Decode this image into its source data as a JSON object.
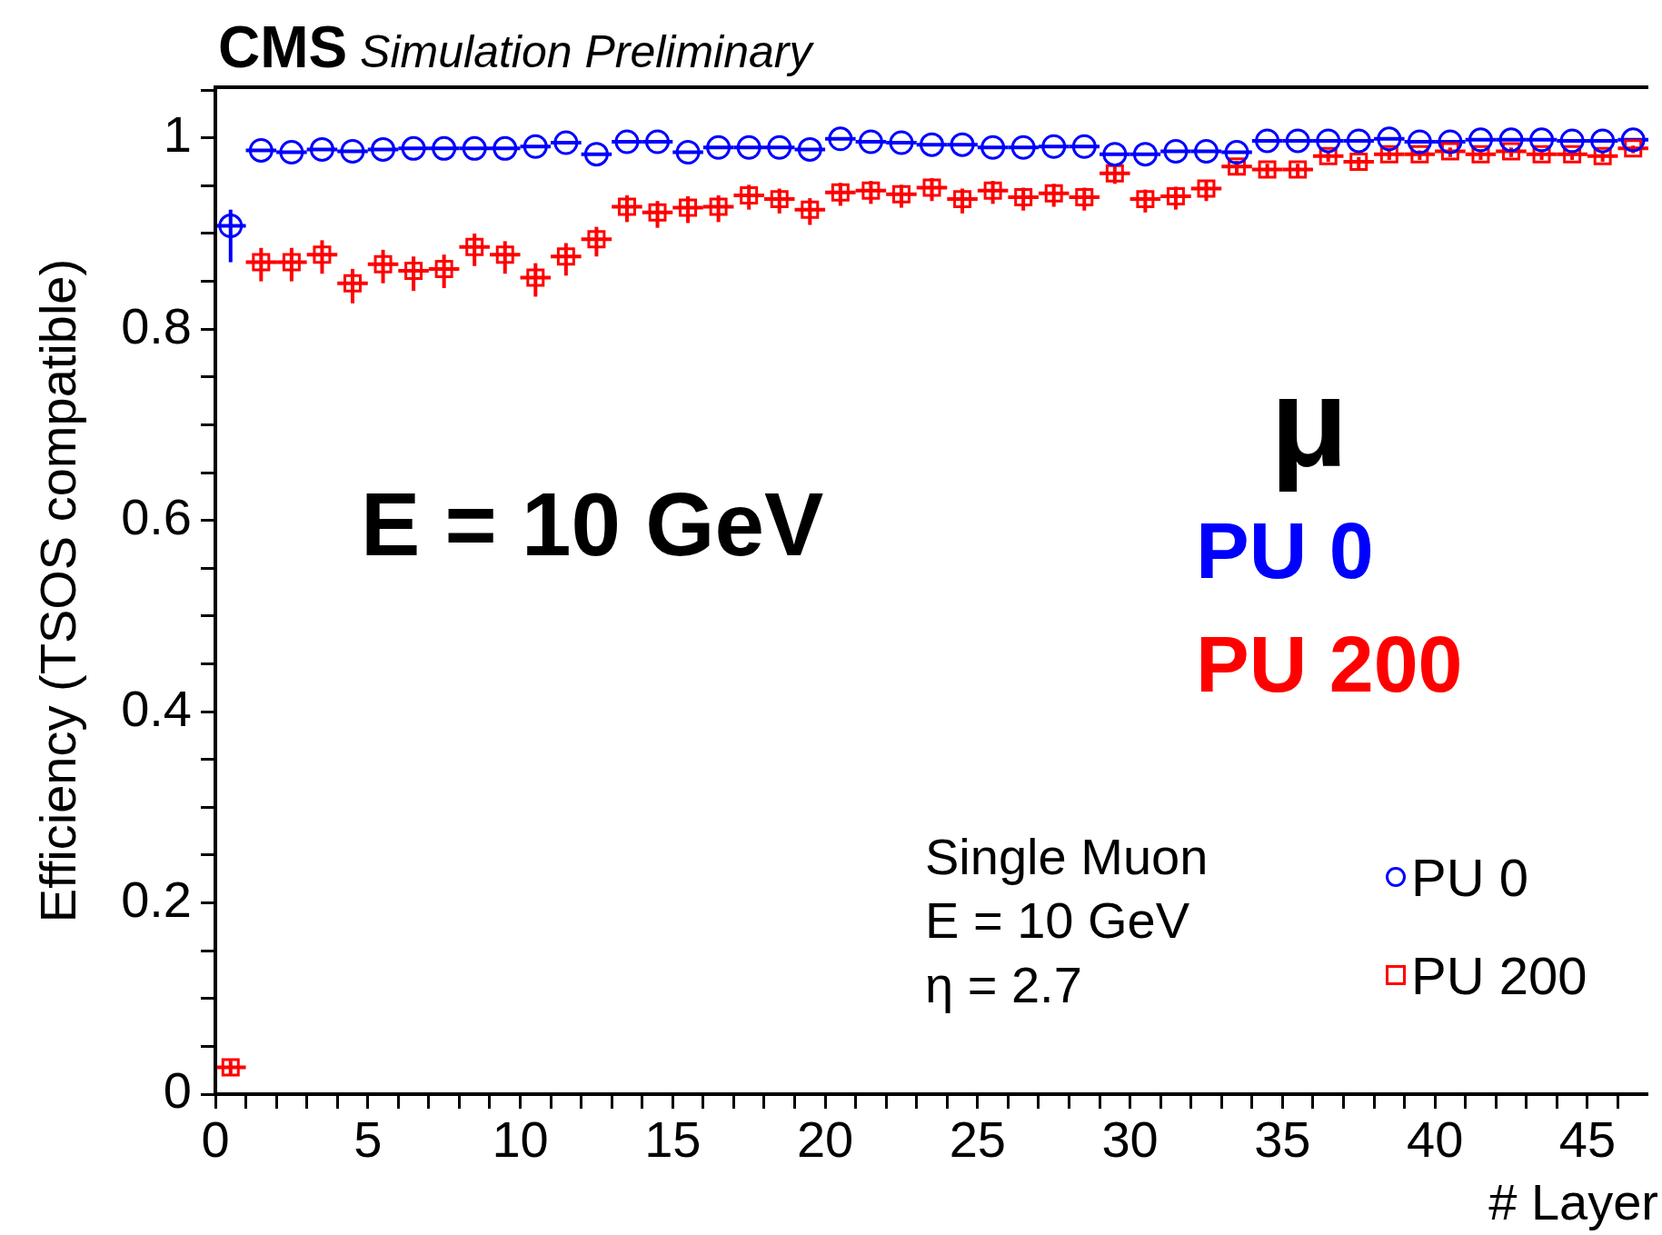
{
  "chart_data": {
    "type": "scatter",
    "title": "CMS",
    "subtitle": "Simulation Preliminary",
    "xlabel": "# Layer",
    "ylabel": "Efficiency (TSOS compatible)",
    "x": [
      0.5,
      1.5,
      2.5,
      3.5,
      4.5,
      5.5,
      6.5,
      7.5,
      8.5,
      9.5,
      10.5,
      11.5,
      12.5,
      13.5,
      14.5,
      15.5,
      16.5,
      17.5,
      18.5,
      19.5,
      20.5,
      21.5,
      22.5,
      23.5,
      24.5,
      25.5,
      26.5,
      27.5,
      28.5,
      29.5,
      30.5,
      31.5,
      32.5,
      33.5,
      34.5,
      35.5,
      36.5,
      37.5,
      38.5,
      39.5,
      40.5,
      41.5,
      42.5,
      43.5,
      44.5,
      45.5,
      46.5
    ],
    "series": [
      {
        "name": "PU 0",
        "color": "#0000ff",
        "marker": "circle",
        "values": [
          0.908,
          0.987,
          0.985,
          0.988,
          0.986,
          0.988,
          0.989,
          0.989,
          0.989,
          0.989,
          0.991,
          0.995,
          0.983,
          0.996,
          0.996,
          0.985,
          0.99,
          0.99,
          0.99,
          0.988,
          0.999,
          0.996,
          0.995,
          0.993,
          0.993,
          0.99,
          0.99,
          0.991,
          0.991,
          0.983,
          0.983,
          0.986,
          0.986,
          0.985,
          0.997,
          0.997,
          0.997,
          0.997,
          0.999,
          0.996,
          0.996,
          0.998,
          0.998,
          0.998,
          0.997,
          0.997,
          0.998
        ],
        "errors": [
          [
            0.87,
            0.925
          ],
          null,
          null,
          null,
          null,
          null,
          null,
          null,
          null,
          null,
          null,
          null,
          null,
          null,
          null,
          null,
          null,
          null,
          null,
          null,
          null,
          null,
          null,
          null,
          null,
          null,
          null,
          null,
          null,
          null,
          null,
          null,
          null,
          null,
          null,
          null,
          null,
          null,
          null,
          null,
          null,
          null,
          null,
          null,
          null,
          null,
          null
        ],
        "xerrors": [
          0.5,
          0.5,
          0.5,
          0.5,
          0.5,
          0.5,
          0.5,
          0.5,
          0.5,
          0.5,
          0.5,
          0.5,
          0.5,
          0.5,
          0.5,
          0.5,
          0.5,
          0.5,
          0.5,
          0.5,
          0.5,
          0.5,
          0.5,
          0.5,
          0.5,
          0.5,
          0.5,
          0.5,
          0.5,
          0.5,
          0.5,
          0.5,
          0.5,
          0.5,
          0.5,
          0.5,
          0.5,
          0.5,
          0.5,
          0.5,
          0.5,
          0.5,
          0.5,
          0.5,
          0.5,
          0.5,
          0.5
        ]
      },
      {
        "name": "PU 200",
        "color": "#ff0000",
        "marker": "square",
        "values": [
          0.028,
          0.87,
          0.87,
          0.878,
          0.848,
          0.868,
          0.861,
          0.863,
          0.886,
          0.878,
          0.854,
          0.876,
          0.894,
          0.928,
          0.922,
          0.927,
          0.928,
          0.94,
          0.936,
          0.925,
          0.943,
          0.945,
          0.941,
          0.948,
          0.936,
          0.945,
          0.938,
          0.942,
          0.938,
          0.963,
          0.936,
          0.939,
          0.947,
          0.97,
          0.967,
          0.967,
          0.981,
          0.975,
          0.983,
          0.983,
          0.986,
          0.983,
          0.986,
          0.983,
          0.983,
          0.981,
          0.989
        ],
        "errors": [
          [
            0.02,
            0.035
          ],
          [
            0.85,
            0.885
          ],
          [
            0.85,
            0.885
          ],
          [
            0.858,
            0.893
          ],
          [
            0.827,
            0.863
          ],
          [
            0.848,
            0.883
          ],
          [
            0.84,
            0.876
          ],
          [
            0.843,
            0.878
          ],
          [
            0.866,
            0.9
          ],
          [
            0.858,
            0.892
          ],
          [
            0.834,
            0.869
          ],
          [
            0.856,
            0.89
          ],
          [
            0.876,
            0.907
          ],
          [
            0.912,
            0.94
          ],
          [
            0.906,
            0.934
          ],
          [
            0.911,
            0.939
          ],
          [
            0.912,
            0.94
          ],
          [
            0.925,
            0.951
          ],
          [
            0.921,
            0.947
          ],
          [
            0.909,
            0.937
          ],
          [
            0.929,
            0.953
          ],
          [
            0.931,
            0.955
          ],
          [
            0.927,
            0.951
          ],
          [
            0.934,
            0.958
          ],
          [
            0.921,
            0.947
          ],
          [
            0.931,
            0.955
          ],
          [
            0.924,
            0.948
          ],
          [
            0.928,
            0.952
          ],
          [
            0.924,
            0.948
          ],
          [
            0.952,
            0.971
          ],
          [
            0.922,
            0.946
          ],
          [
            0.925,
            0.949
          ],
          [
            0.934,
            0.956
          ],
          [
            0.962,
            0.976
          ],
          [
            0.958,
            0.973
          ],
          [
            0.958,
            0.973
          ],
          [
            0.975,
            0.985
          ],
          [
            0.968,
            0.98
          ],
          [
            0.977,
            0.987
          ],
          [
            0.977,
            0.987
          ],
          [
            0.98,
            0.99
          ],
          [
            0.977,
            0.987
          ],
          [
            0.98,
            0.99
          ],
          [
            0.977,
            0.987
          ],
          [
            0.977,
            0.987
          ],
          [
            0.975,
            0.985
          ],
          [
            0.984,
            0.992
          ]
        ],
        "xerrors": [
          0.5,
          0.5,
          0.5,
          0.5,
          0.5,
          0.5,
          0.5,
          0.5,
          0.5,
          0.5,
          0.5,
          0.5,
          0.5,
          0.5,
          0.5,
          0.5,
          0.5,
          0.5,
          0.5,
          0.5,
          0.5,
          0.5,
          0.5,
          0.5,
          0.5,
          0.5,
          0.5,
          0.5,
          0.5,
          0.5,
          0.5,
          0.5,
          0.5,
          0.5,
          0.5,
          0.5,
          0.5,
          0.5,
          0.5,
          0.5,
          0.5,
          0.5,
          0.5,
          0.5,
          0.5,
          0.5,
          0.5
        ]
      }
    ],
    "xlim": [
      0,
      47
    ],
    "xticks": [
      0,
      {
        "value": 1,
        "label": null
      },
      {
        "value": 2,
        "label": null
      },
      {
        "value": 3,
        "label": null
      },
      {
        "value": 4,
        "label": null
      },
      5,
      {
        "value": 6,
        "label": null
      },
      {
        "value": 7,
        "label": null
      },
      {
        "value": 8,
        "label": null
      },
      {
        "value": 9,
        "label": null
      },
      10,
      {
        "value": 11,
        "label": null
      },
      {
        "value": 12,
        "label": null
      },
      {
        "value": 13,
        "label": null
      },
      {
        "value": 14,
        "label": null
      },
      15,
      {
        "value": 16,
        "label": null
      },
      {
        "value": 17,
        "label": null
      },
      {
        "value": 18,
        "label": null
      },
      {
        "value": 19,
        "label": null
      },
      20,
      {
        "value": 21,
        "label": null
      },
      {
        "value": 22,
        "label": null
      },
      {
        "value": 23,
        "label": null
      },
      {
        "value": 24,
        "label": null
      },
      25,
      {
        "value": 26,
        "label": null
      },
      {
        "value": 27,
        "label": null
      },
      {
        "value": 28,
        "label": null
      },
      {
        "value": 29,
        "label": null
      },
      30,
      {
        "value": 31,
        "label": null
      },
      {
        "value": 32,
        "label": null
      },
      {
        "value": 33,
        "label": null
      },
      {
        "value": 34,
        "label": null
      },
      35,
      {
        "value": 36,
        "label": null
      },
      {
        "value": 37,
        "label": null
      },
      {
        "value": 38,
        "label": null
      },
      {
        "value": 39,
        "label": null
      },
      40,
      {
        "value": 41,
        "label": null
      },
      {
        "value": 42,
        "label": null
      },
      {
        "value": 43,
        "label": null
      },
      {
        "value": 44,
        "label": null
      },
      45,
      {
        "value": 46,
        "label": null
      }
    ],
    "ylim": [
      0,
      1.053
    ],
    "yticks": [
      0,
      {
        "value": 0.05,
        "label": null
      },
      {
        "value": 0.1,
        "label": null
      },
      {
        "value": 0.15,
        "label": null
      },
      0.2,
      {
        "value": 0.25,
        "label": null
      },
      {
        "value": 0.3,
        "label": null
      },
      {
        "value": 0.35,
        "label": null
      },
      0.4,
      {
        "value": 0.45,
        "label": null
      },
      {
        "value": 0.5,
        "label": null
      },
      {
        "value": 0.55,
        "label": null
      },
      0.6,
      {
        "value": 0.65,
        "label": null
      },
      {
        "value": 0.7,
        "label": null
      },
      {
        "value": 0.75,
        "label": null
      },
      0.8,
      {
        "value": 0.85,
        "label": null
      },
      {
        "value": 0.9,
        "label": null
      },
      {
        "value": 0.95,
        "label": null
      },
      1,
      {
        "value": 1.05,
        "label": null
      }
    ],
    "grid": false,
    "legend": "bottom right",
    "annotations": [
      "E = 10 GeV",
      "μ",
      "PU 0",
      "PU 200",
      "Single Muon",
      "E = 10 GeV",
      "η = 2.7"
    ]
  }
}
